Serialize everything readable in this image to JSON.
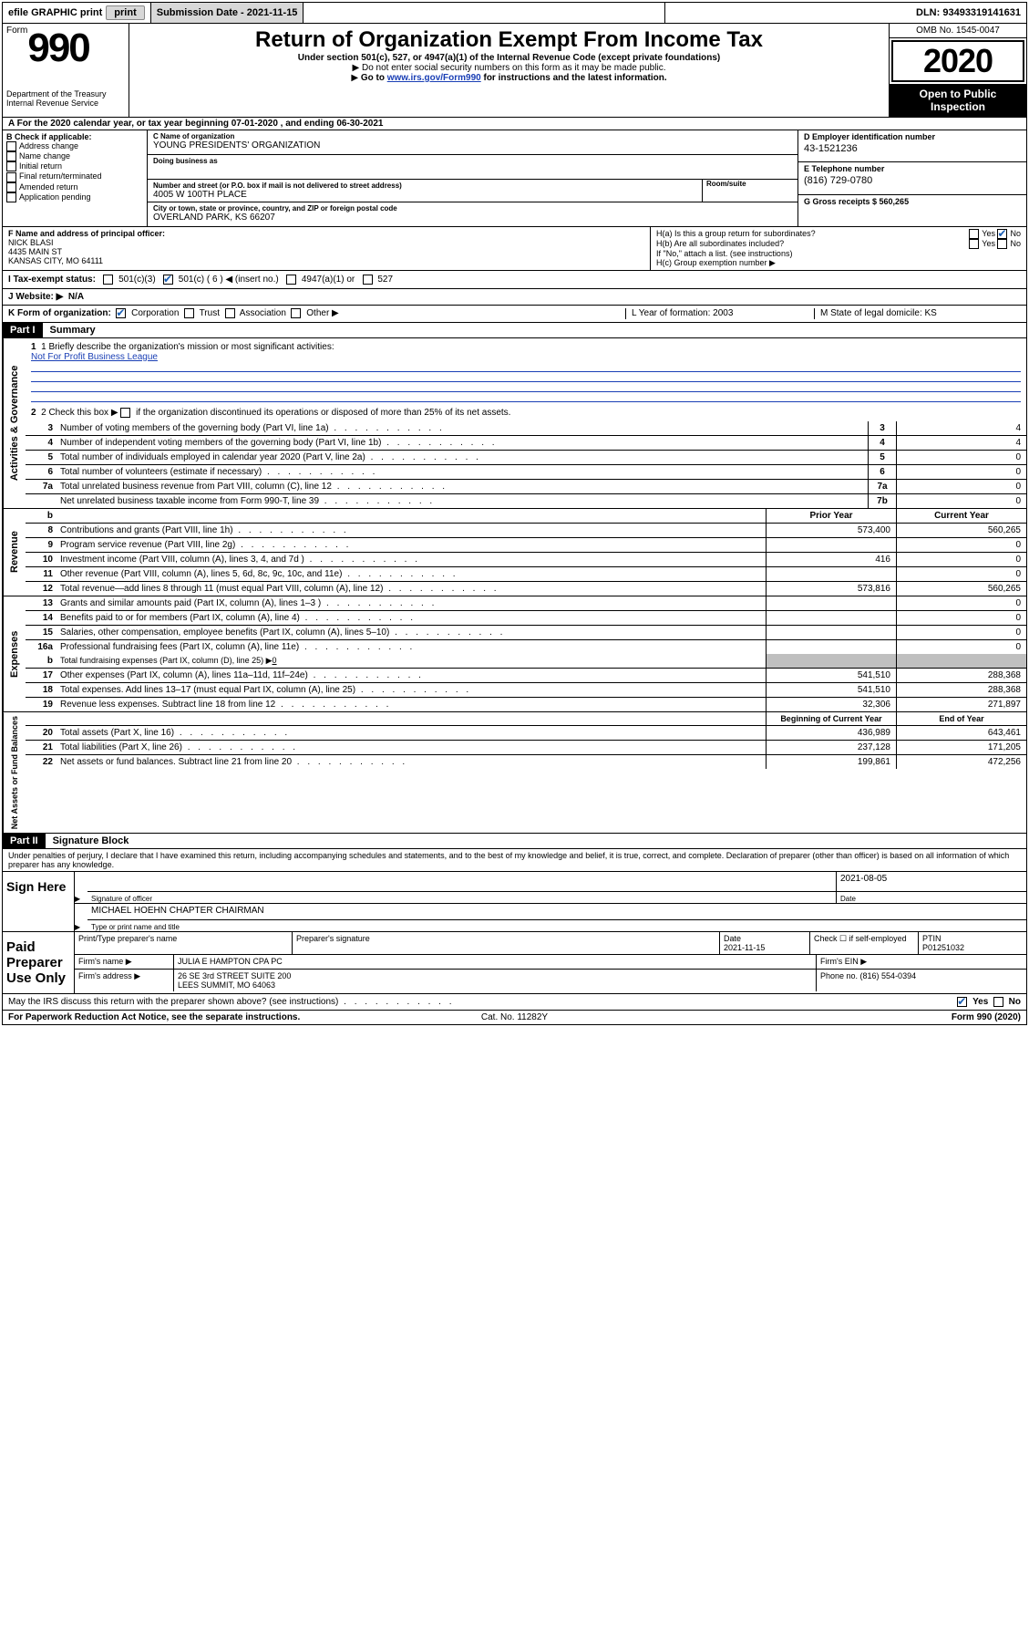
{
  "top": {
    "efile": "efile GRAPHIC print",
    "submission_label": "Submission Date - 2021-11-15",
    "dln_label": "DLN: 93493319141631"
  },
  "header": {
    "form_word": "Form",
    "form_num": "990",
    "dept1": "Department of the Treasury",
    "dept2": "Internal Revenue Service",
    "title": "Return of Organization Exempt From Income Tax",
    "sub": "Under section 501(c), 527, or 4947(a)(1) of the Internal Revenue Code (except private foundations)",
    "sub2": "Do not enter social security numbers on this form as it may be made public.",
    "sub3_pre": "Go to ",
    "sub3_link": "www.irs.gov/Form990",
    "sub3_post": " for instructions and the latest information.",
    "omb": "OMB No. 1545-0047",
    "year": "2020",
    "inspection": "Open to Public Inspection"
  },
  "rowA": "A   For the 2020 calendar year, or tax year beginning 07-01-2020    , and ending 06-30-2021",
  "B": {
    "label": "B Check if applicable:",
    "items": [
      "Address change",
      "Name change",
      "Initial return",
      "Final return/terminated",
      "Amended return",
      "Application pending"
    ]
  },
  "C": {
    "name_label": "C Name of organization",
    "name": "YOUNG PRESIDENTS' ORGANIZATION",
    "dba_label": "Doing business as",
    "dba": "",
    "addr_label": "Number and street (or P.O. box if mail is not delivered to street address)",
    "addr": "4005 W 100TH PLACE",
    "room_label": "Room/suite",
    "city_label": "City or town, state or province, country, and ZIP or foreign postal code",
    "city": "OVERLAND PARK, KS  66207"
  },
  "D": {
    "label": "D Employer identification number",
    "val": "43-1521236"
  },
  "E": {
    "label": "E Telephone number",
    "val": "(816) 729-0780"
  },
  "G": {
    "label": "G Gross receipts $ 560,265"
  },
  "F": {
    "label": "F  Name and address of principal officer:",
    "name": "NICK BLASI",
    "addr1": "4435 MAIN ST",
    "addr2": "KANSAS CITY, MO  64111"
  },
  "H": {
    "a_label": "H(a)  Is this a group return for subordinates?",
    "b_label": "H(b)  Are all subordinates included?",
    "b_note": "If \"No,\" attach a list. (see instructions)",
    "c_label": "H(c)  Group exemption number ▶"
  },
  "tax": {
    "label": "I    Tax-exempt status:",
    "opts": [
      "501(c)(3)",
      "501(c) ( 6 ) ◀ (insert no.)",
      "4947(a)(1) or",
      "527"
    ]
  },
  "J": {
    "label": "J    Website: ▶",
    "val": "N/A"
  },
  "K": {
    "label": "K Form of organization:",
    "opts": [
      "Corporation",
      "Trust",
      "Association",
      "Other ▶"
    ],
    "L_label": "L Year of formation: 2003",
    "M_label": "M State of legal domicile: KS"
  },
  "part1": {
    "tab": "Part I",
    "title": "Summary"
  },
  "mission": {
    "q": "1   Briefly describe the organization's mission or most significant activities:",
    "a": "Not For Profit Business League",
    "q2_pre": "2    Check this box ▶ ",
    "q2_post": "  if the organization discontinued its operations or disposed of more than 25% of its net assets."
  },
  "activities_rows": [
    {
      "n": "3",
      "d": "Number of voting members of the governing body (Part VI, line 1a)",
      "box": "3",
      "v": "4"
    },
    {
      "n": "4",
      "d": "Number of independent voting members of the governing body (Part VI, line 1b)",
      "box": "4",
      "v": "4"
    },
    {
      "n": "5",
      "d": "Total number of individuals employed in calendar year 2020 (Part V, line 2a)",
      "box": "5",
      "v": "0"
    },
    {
      "n": "6",
      "d": "Total number of volunteers (estimate if necessary)",
      "box": "6",
      "v": "0"
    },
    {
      "n": "7a",
      "d": "Total unrelated business revenue from Part VIII, column (C), line 12",
      "box": "7a",
      "v": "0"
    },
    {
      "n": "",
      "d": "Net unrelated business taxable income from Form 990-T, line 39",
      "box": "7b",
      "v": "0"
    }
  ],
  "two_col_header": {
    "prior": "Prior Year",
    "current": "Current Year"
  },
  "revenue_rows": [
    {
      "n": "8",
      "d": "Contributions and grants (Part VIII, line 1h)",
      "p": "573,400",
      "c": "560,265"
    },
    {
      "n": "9",
      "d": "Program service revenue (Part VIII, line 2g)",
      "p": "",
      "c": "0"
    },
    {
      "n": "10",
      "d": "Investment income (Part VIII, column (A), lines 3, 4, and 7d )",
      "p": "416",
      "c": "0"
    },
    {
      "n": "11",
      "d": "Other revenue (Part VIII, column (A), lines 5, 6d, 8c, 9c, 10c, and 11e)",
      "p": "",
      "c": "0"
    },
    {
      "n": "12",
      "d": "Total revenue—add lines 8 through 11 (must equal Part VIII, column (A), line 12)",
      "p": "573,816",
      "c": "560,265"
    }
  ],
  "expense_rows": [
    {
      "n": "13",
      "d": "Grants and similar amounts paid (Part IX, column (A), lines 1–3 )",
      "p": "",
      "c": "0"
    },
    {
      "n": "14",
      "d": "Benefits paid to or for members (Part IX, column (A), line 4)",
      "p": "",
      "c": "0"
    },
    {
      "n": "15",
      "d": "Salaries, other compensation, employee benefits (Part IX, column (A), lines 5–10)",
      "p": "",
      "c": "0"
    },
    {
      "n": "16a",
      "d": "Professional fundraising fees (Part IX, column (A), line 11e)",
      "p": "",
      "c": "0"
    }
  ],
  "expense_b": {
    "n": "b",
    "d": "Total fundraising expenses (Part IX, column (D), line 25) ▶",
    "u": "0"
  },
  "expense_rows2": [
    {
      "n": "17",
      "d": "Other expenses (Part IX, column (A), lines 11a–11d, 11f–24e)",
      "p": "541,510",
      "c": "288,368"
    },
    {
      "n": "18",
      "d": "Total expenses. Add lines 13–17 (must equal Part IX, column (A), line 25)",
      "p": "541,510",
      "c": "288,368"
    },
    {
      "n": "19",
      "d": "Revenue less expenses. Subtract line 18 from line 12",
      "p": "32,306",
      "c": "271,897"
    }
  ],
  "net_header": {
    "prior": "Beginning of Current Year",
    "current": "End of Year"
  },
  "net_rows": [
    {
      "n": "20",
      "d": "Total assets (Part X, line 16)",
      "p": "436,989",
      "c": "643,461"
    },
    {
      "n": "21",
      "d": "Total liabilities (Part X, line 26)",
      "p": "237,128",
      "c": "171,205"
    },
    {
      "n": "22",
      "d": "Net assets or fund balances. Subtract line 21 from line 20",
      "p": "199,861",
      "c": "472,256"
    }
  ],
  "vtabs": {
    "act": "Activities & Governance",
    "rev": "Revenue",
    "exp": "Expenses",
    "net": "Net Assets or Fund Balances"
  },
  "part2": {
    "tab": "Part II",
    "title": "Signature Block"
  },
  "penalties": "Under penalties of perjury, I declare that I have examined this return, including accompanying schedules and statements, and to the best of my knowledge and belief, it is true, correct, and complete. Declaration of preparer (other than officer) is based on all information of which preparer has any knowledge.",
  "sign": {
    "here": "Sign Here",
    "sig_label": "Signature of officer",
    "date": "2021-08-05",
    "date_label": "Date",
    "name": "MICHAEL HOEHN  CHAPTER CHAIRMAN",
    "name_label": "Type or print name and title"
  },
  "paid": {
    "here": "Paid Preparer Use Only",
    "h1": "Print/Type preparer's name",
    "h2": "Preparer's signature",
    "h3_label": "Date",
    "h3": "2021-11-15",
    "h4": "Check ☐ if self-employed",
    "h5_label": "PTIN",
    "h5": "P01251032",
    "firm_label": "Firm's name    ▶",
    "firm": "JULIA E HAMPTON CPA PC",
    "ein_label": "Firm's EIN ▶",
    "addr_label": "Firm's address ▶",
    "addr1": "26 SE 3rd STREET SUITE 200",
    "addr2": "LEES SUMMIT, MO  64063",
    "phone_label": "Phone no. (816) 554-0394"
  },
  "discuss": "May the IRS discuss this return with the preparer shown above? (see instructions)",
  "footer": {
    "left": "For Paperwork Reduction Act Notice, see the separate instructions.",
    "mid": "Cat. No. 11282Y",
    "right": "Form 990 (2020)"
  }
}
